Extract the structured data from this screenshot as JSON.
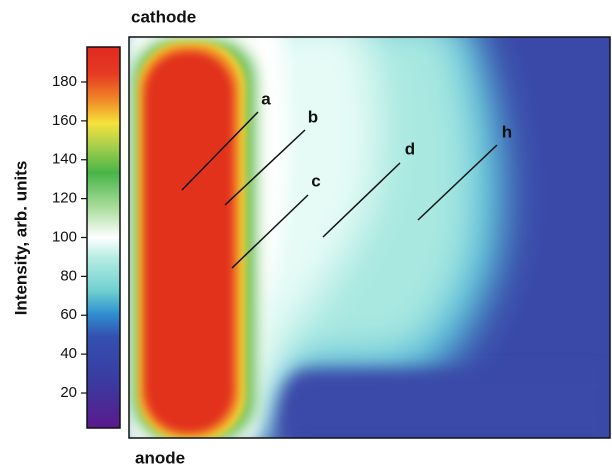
{
  "chart_data": {
    "type": "heatmap",
    "top_label": "cathode",
    "bottom_label": "anode",
    "colorbar_label": "Intensity, arb. units",
    "colorbar_lim": [
      2,
      198
    ],
    "colorbar_ticks": [
      20,
      40,
      60,
      80,
      100,
      120,
      140,
      160,
      180
    ],
    "annotations": [
      "a",
      "b",
      "c",
      "d",
      "h"
    ]
  }
}
